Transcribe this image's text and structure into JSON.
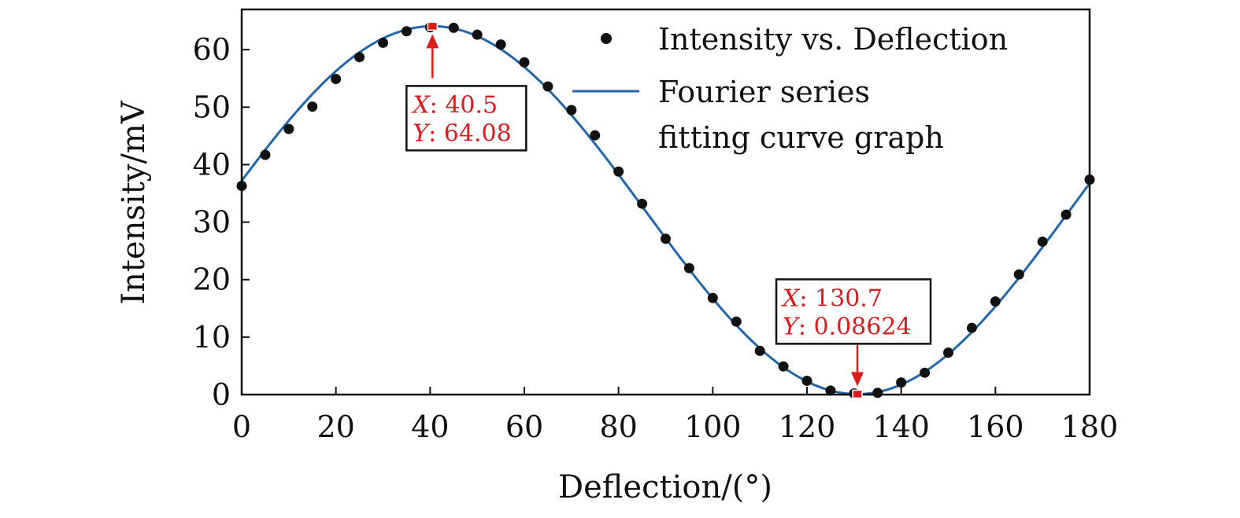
{
  "chart_data": {
    "type": "scatter",
    "title": "",
    "xlabel": "Deflection/(°)",
    "ylabel": "Intensity/mV",
    "xlim": [
      0,
      180
    ],
    "ylim": [
      0,
      67
    ],
    "x_ticks": [
      0,
      20,
      40,
      60,
      80,
      100,
      120,
      140,
      160,
      180
    ],
    "y_ticks": [
      0,
      10,
      20,
      30,
      40,
      50,
      60
    ],
    "x_tick_labels": [
      "0",
      "20",
      "40",
      "60",
      "80",
      "100",
      "120",
      "140",
      "160",
      "180"
    ],
    "y_tick_labels": [
      "0",
      "10",
      "20",
      "30",
      "40",
      "50",
      "60"
    ],
    "legend_position": "top-right",
    "series": [
      {
        "name": "Intensity vs. Deflection",
        "kind": "scatter",
        "color": "#111111",
        "x": [
          0,
          5,
          10,
          15,
          20,
          25,
          30,
          35,
          40,
          45,
          50,
          55,
          60,
          65,
          70,
          75,
          80,
          85,
          90,
          95,
          100,
          105,
          110,
          115,
          120,
          125,
          130,
          135,
          140,
          145,
          150,
          155,
          160,
          165,
          170,
          175,
          180
        ],
        "y": [
          36.3,
          41.7,
          46.2,
          50.1,
          54.9,
          58.7,
          61.2,
          63.2,
          63.9,
          63.8,
          62.6,
          60.9,
          57.8,
          53.6,
          49.5,
          45.1,
          38.8,
          33.2,
          27.1,
          22.0,
          16.8,
          12.7,
          7.6,
          4.9,
          2.4,
          0.7,
          0.2,
          0.3,
          2.1,
          3.8,
          7.3,
          11.6,
          16.2,
          20.9,
          26.6,
          31.3,
          37.4
        ]
      },
      {
        "name": "Fourier series\nfitting curve graph",
        "name_lines": [
          "Fourier series",
          "fitting curve graph"
        ],
        "kind": "line",
        "color": "#2166ac",
        "fit": {
          "offset": 32.08,
          "amplitude": 32.0,
          "period": 180.4,
          "peak_x": 40.5
        }
      }
    ],
    "annotations": [
      {
        "x": 40.5,
        "y": 64.08,
        "x_label": "X",
        "x_value": ": 40.5",
        "y_label": "Y",
        "y_value": ": 64.08",
        "box_side": "below",
        "color": "#d91c1c"
      },
      {
        "x": 130.7,
        "y": 0.08624,
        "x_label": "X",
        "x_value": ": 130.7",
        "y_label": "Y",
        "y_value": ": 0.08624",
        "box_side": "above",
        "color": "#d91c1c"
      }
    ]
  }
}
